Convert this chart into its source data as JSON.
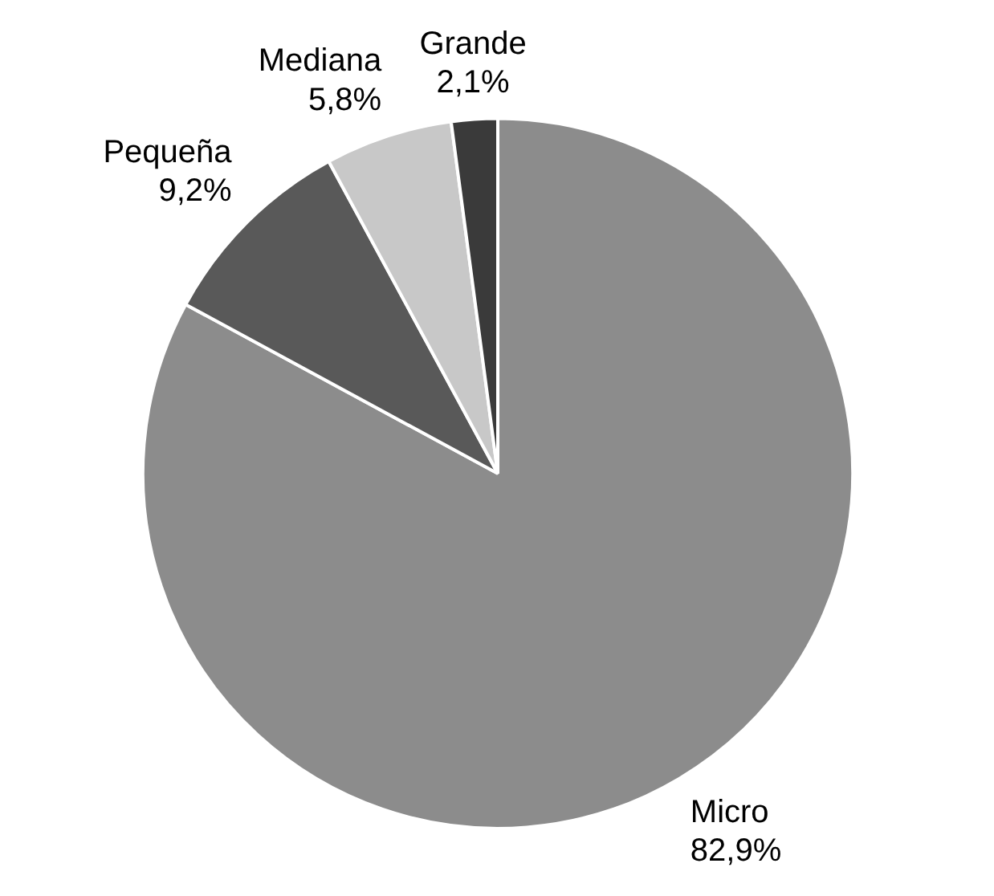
{
  "chart_data": {
    "type": "pie",
    "categories": [
      "Micro",
      "Pequeña",
      "Mediana",
      "Grande"
    ],
    "values": [
      82.9,
      9.2,
      5.8,
      2.1
    ],
    "colors": [
      "#8c8c8c",
      "#595959",
      "#c8c8c8",
      "#3a3a3a"
    ],
    "value_labels": [
      "82,9%",
      "9,2%",
      "5,8%",
      "2,1%"
    ],
    "legend": false
  }
}
